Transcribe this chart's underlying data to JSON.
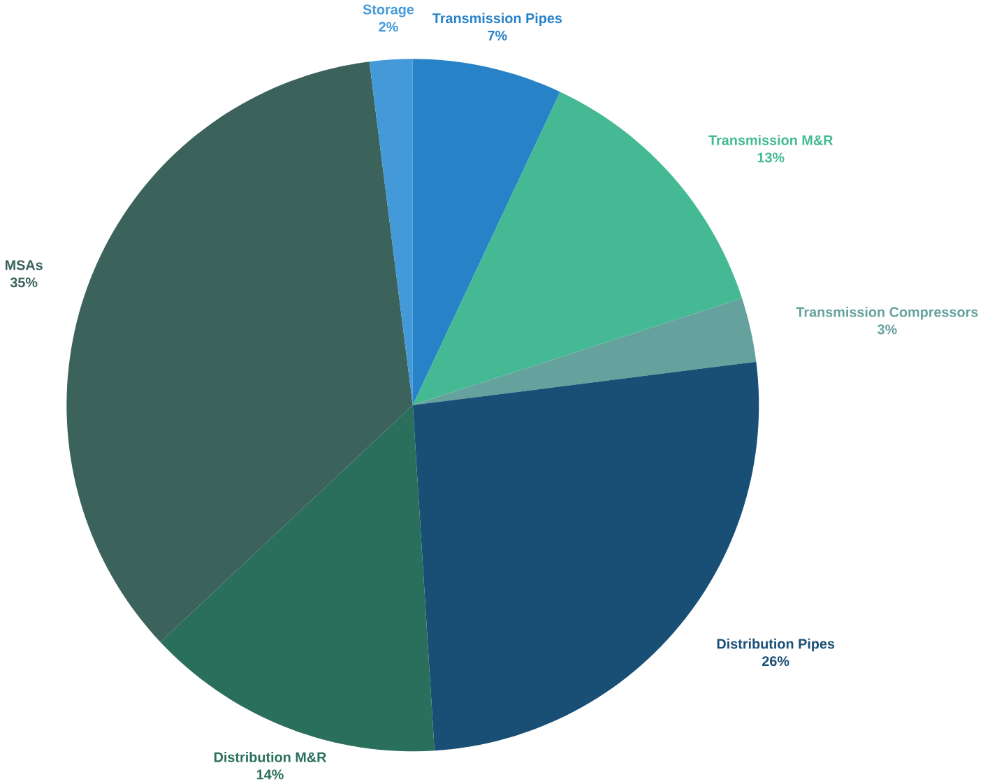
{
  "chart_data": {
    "type": "pie",
    "categories": [
      "Transmission Pipes",
      "Transmission M&R",
      "Transmission Compressors",
      "Distribution Pipes",
      "Distribution M&R",
      "MSAs",
      "Storage"
    ],
    "values": [
      7,
      13,
      3,
      26,
      14,
      35,
      2
    ],
    "value_labels": [
      "7%",
      "13%",
      "3%",
      "26%",
      "14%",
      "35%",
      "2%"
    ],
    "colors": [
      "#2882c8",
      "#44b994",
      "#65a29e",
      "#1a4f75",
      "#2a6f5c",
      "#3c625c",
      "#4499d9"
    ]
  }
}
